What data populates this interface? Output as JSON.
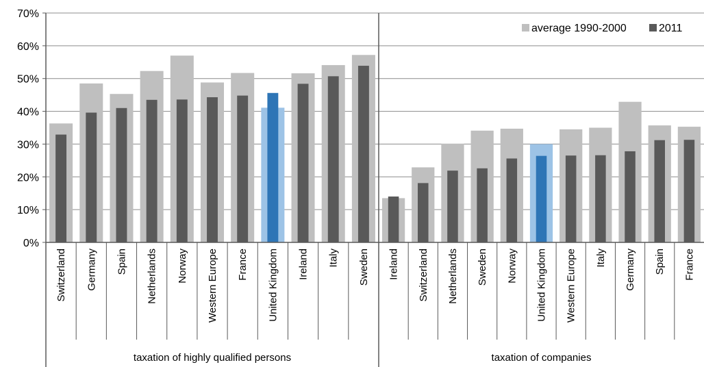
{
  "colors": {
    "avg": "#bfbfbf",
    "y2011": "#595959",
    "uk_avg": "#9dc3e6",
    "uk_2011": "#2e75b6",
    "grid": "#8c8c8c",
    "axis": "#595959"
  },
  "chart_data": {
    "type": "bar",
    "title": "",
    "xlabel": "",
    "ylabel": "",
    "ylim": [
      0,
      70
    ],
    "yticks": [
      0,
      10,
      20,
      30,
      40,
      50,
      60,
      70
    ],
    "ytick_labels": [
      "0%",
      "10%",
      "20%",
      "30%",
      "40%",
      "50%",
      "60%",
      "70%"
    ],
    "grid": true,
    "legend_position": "top-right",
    "highlight_category": "United Kingdom",
    "legend": [
      "average 1990-2000",
      "2011"
    ],
    "groups": [
      {
        "label": "taxation of highly qualified persons",
        "categories": [
          "Switzerland",
          "Germany",
          "Spain",
          "Netherlands",
          "Norway",
          "Western Europe",
          "France",
          "United Kingdom",
          "Ireland",
          "Italy",
          "Sweden"
        ],
        "series": [
          {
            "name": "average 1990-2000",
            "values": [
              36.3,
              48.5,
              45.3,
              52.3,
              57.0,
              48.8,
              51.7,
              41.1,
              51.6,
              54.1,
              57.2
            ]
          },
          {
            "name": "2011",
            "values": [
              32.9,
              39.6,
              41.0,
              43.5,
              43.6,
              44.3,
              44.8,
              45.6,
              48.4,
              50.7,
              53.9
            ]
          }
        ]
      },
      {
        "label": "taxation of companies",
        "categories": [
          "Ireland",
          "Switzerland",
          "Netherlands",
          "Sweden",
          "Norway",
          "United Kingdom",
          "Western Europe",
          "Italy",
          "Germany",
          "Spain",
          "France"
        ],
        "series": [
          {
            "name": "average 1990-2000",
            "values": [
              13.5,
              22.9,
              30.1,
              34.1,
              34.7,
              30.0,
              34.5,
              35.0,
              42.9,
              35.7,
              35.3
            ]
          },
          {
            "name": "2011",
            "values": [
              14.0,
              18.1,
              21.9,
              22.6,
              25.6,
              26.4,
              26.5,
              26.6,
              27.8,
              31.2,
              31.3
            ]
          }
        ]
      }
    ]
  }
}
